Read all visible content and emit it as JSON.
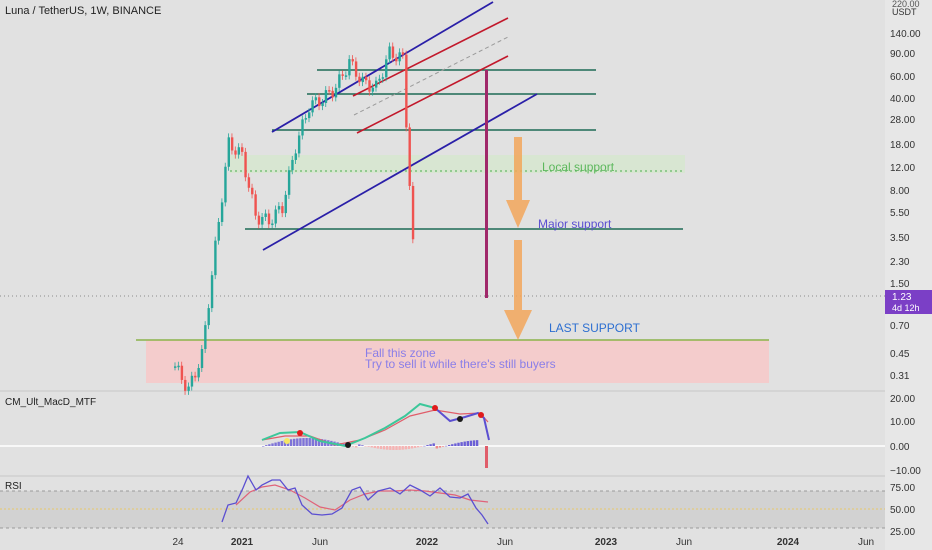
{
  "header": {
    "symbol_title": "Luna / TetherUS, 1W, BINANCE",
    "currency": "USDT",
    "top_price_partial": "220.00"
  },
  "price_axis": {
    "ticks": [
      "140.00",
      "90.00",
      "60.00",
      "40.00",
      "28.00",
      "18.00",
      "12.00",
      "8.00",
      "5.50",
      "3.50",
      "2.30",
      "1.50",
      "0.70",
      "0.45",
      "0.31"
    ],
    "current_price": "1.23",
    "countdown": "4d 12h",
    "current_badge_color": "#7b3fc6"
  },
  "time_axis": {
    "ticks": [
      "24",
      "2021",
      "Jun",
      "2022",
      "Jun",
      "2023",
      "Jun",
      "2024",
      "Jun"
    ]
  },
  "annotations": {
    "local_support": "Local support",
    "major_support": "Major support",
    "last_support": "LAST SUPPORT",
    "zone_line1": "Fall this zone",
    "zone_line2": "Try to sell it while there's still buyers"
  },
  "indicators": {
    "macd": {
      "name": "CM_Ult_MacD_MTF",
      "ticks": [
        "20.00",
        "10.00",
        "0.00",
        "−10.00"
      ]
    },
    "rsi": {
      "name": "RSI",
      "ticks": [
        "75.00",
        "50.00",
        "25.00"
      ]
    }
  },
  "colors": {
    "up": "#26a69a",
    "down": "#ef5350",
    "channel_outer": "#2a1fa8",
    "channel_inner": "#c2182b",
    "support_line": "#1e6b55",
    "arrow": "#f2a65a",
    "sell_zone": "#f4cccc",
    "macd_line": "#3cc79a",
    "macd_signal": "#e05d6a",
    "rsi_line": "#5b4fd1",
    "rsi_ma": "#e0637a"
  },
  "chart_data": {
    "type": "candlestick",
    "title": "Luna / TetherUS, 1W, BINANCE",
    "y_scale": "log",
    "ylim": [
      0.25,
      220
    ],
    "x_ticks": [
      "24",
      "2021",
      "Jun",
      "2022",
      "Jun",
      "2023",
      "Jun",
      "2024",
      "Jun"
    ],
    "y_ticks": [
      140,
      90,
      60,
      40,
      28,
      18,
      12,
      8,
      5.5,
      3.5,
      2.3,
      1.5,
      0.7,
      0.45,
      0.31
    ],
    "last_price": 1.23,
    "price_path": [
      {
        "date": "2020-11",
        "close": 0.45
      },
      {
        "date": "2020-12",
        "close": 0.3
      },
      {
        "date": "2021-01",
        "close": 0.55
      },
      {
        "date": "2021-02",
        "close": 3.5
      },
      {
        "date": "2021-03",
        "close": 21
      },
      {
        "date": "2021-04",
        "close": 17
      },
      {
        "date": "2021-05",
        "close": 6
      },
      {
        "date": "2021-06",
        "close": 5.5
      },
      {
        "date": "2021-07",
        "close": 7
      },
      {
        "date": "2021-08",
        "close": 20
      },
      {
        "date": "2021-09",
        "close": 40
      },
      {
        "date": "2021-10",
        "close": 45
      },
      {
        "date": "2021-11",
        "close": 55
      },
      {
        "date": "2021-12",
        "close": 85
      },
      {
        "date": "2022-01",
        "close": 60
      },
      {
        "date": "2022-02",
        "close": 55
      },
      {
        "date": "2022-03",
        "close": 100
      },
      {
        "date": "2022-04",
        "close": 90
      },
      {
        "date": "2022-05",
        "close": 1.23
      }
    ],
    "horizontal_levels": [
      65,
      42,
      23,
      4.2,
      0.6
    ],
    "zones": [
      {
        "label": "Local support",
        "from": 10.5,
        "to": 15
      },
      {
        "label": "Fall this zone",
        "from": 0.27,
        "to": 0.58
      }
    ],
    "rsi_levels": [
      70,
      50,
      30
    ]
  }
}
